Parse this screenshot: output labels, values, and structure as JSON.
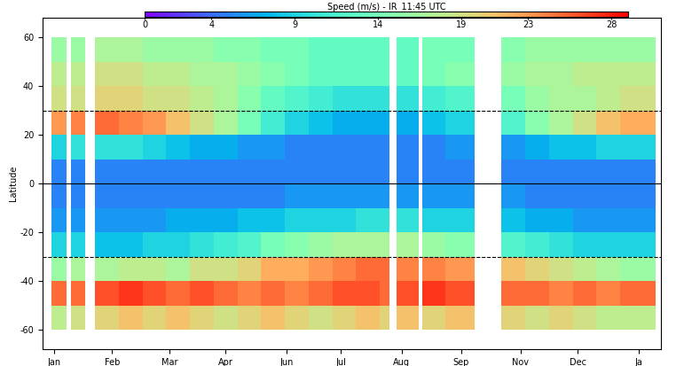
{
  "chart_data": {
    "type": "heatmap",
    "title": "Speed (m/s) - IR_11:45 UTC",
    "y_label": "Latitude",
    "x_edges": [
      5,
      14,
      17,
      25,
      31,
      45,
      59,
      73,
      87,
      101,
      115,
      129,
      143,
      157,
      171,
      185,
      199,
      205,
      209,
      222,
      224,
      238,
      255,
      271,
      285,
      299,
      313,
      327,
      341,
      362
    ],
    "y_edges": [
      -60,
      -50,
      -40,
      -30,
      -20,
      -10,
      0,
      10,
      20,
      30,
      40,
      50,
      60
    ],
    "cells": [
      [
        18,
        null,
        19,
        null,
        20,
        21,
        20,
        21,
        20,
        19,
        20,
        21,
        20,
        19,
        20,
        21,
        20,
        null,
        21,
        null,
        20,
        21,
        null,
        20,
        19,
        20,
        19,
        18,
        18
      ],
      [
        25,
        null,
        25,
        null,
        26,
        27,
        26,
        25,
        26,
        25,
        24,
        25,
        24,
        25,
        26,
        26,
        25,
        null,
        26,
        null,
        27,
        26,
        null,
        25,
        25,
        24,
        25,
        24,
        25
      ],
      [
        16,
        null,
        17,
        null,
        17,
        18,
        18,
        17,
        19,
        19,
        20,
        22,
        22,
        23,
        24,
        25,
        25,
        null,
        24,
        null,
        24,
        23,
        null,
        21,
        20,
        19,
        18,
        17,
        16
      ],
      [
        9,
        null,
        9,
        null,
        8,
        8,
        9,
        9,
        10,
        11,
        12,
        14,
        15,
        16,
        17,
        17,
        17,
        null,
        17,
        null,
        16,
        15,
        null,
        12,
        11,
        10,
        9,
        9,
        9
      ],
      [
        6,
        null,
        6,
        null,
        6,
        6,
        6,
        7,
        7,
        7,
        8,
        8,
        9,
        9,
        9,
        10,
        10,
        null,
        10,
        null,
        9,
        9,
        null,
        8,
        7,
        7,
        6,
        6,
        6
      ],
      [
        5,
        null,
        5,
        null,
        5,
        5,
        5,
        5,
        5,
        5,
        5,
        5,
        6,
        6,
        6,
        6,
        6,
        null,
        6,
        null,
        6,
        6,
        null,
        6,
        5,
        5,
        5,
        5,
        5
      ],
      [
        5,
        null,
        5,
        null,
        5,
        5,
        5,
        5,
        5,
        5,
        5,
        5,
        5,
        5,
        5,
        5,
        5,
        null,
        5,
        null,
        5,
        5,
        null,
        5,
        5,
        5,
        5,
        5,
        5
      ],
      [
        9,
        null,
        10,
        null,
        10,
        10,
        9,
        8,
        7,
        7,
        6,
        6,
        5,
        5,
        5,
        5,
        5,
        null,
        5,
        null,
        5,
        6,
        null,
        6,
        7,
        8,
        8,
        9,
        9
      ],
      [
        23,
        null,
        24,
        null,
        25,
        24,
        23,
        21,
        19,
        17,
        14,
        11,
        9,
        8,
        7,
        7,
        7,
        null,
        7,
        null,
        8,
        9,
        null,
        12,
        15,
        17,
        19,
        21,
        22
      ],
      [
        19,
        null,
        19,
        null,
        20,
        20,
        19,
        19,
        18,
        17,
        15,
        13,
        12,
        11,
        10,
        10,
        10,
        null,
        10,
        null,
        11,
        12,
        null,
        14,
        16,
        17,
        17,
        18,
        19
      ],
      [
        18,
        null,
        18,
        null,
        19,
        19,
        18,
        18,
        17,
        17,
        16,
        15,
        14,
        13,
        13,
        13,
        13,
        null,
        13,
        null,
        14,
        15,
        null,
        16,
        17,
        17,
        18,
        18,
        18
      ],
      [
        16,
        null,
        16,
        null,
        17,
        17,
        16,
        16,
        16,
        15,
        15,
        14,
        14,
        13,
        13,
        13,
        13,
        null,
        13,
        null,
        14,
        14,
        null,
        15,
        16,
        16,
        16,
        16,
        16
      ]
    ],
    "xlim": [
      0,
      365
    ],
    "xticks": [
      {
        "value": 7,
        "label": "Jan"
      },
      {
        "value": 41,
        "label": "Feb"
      },
      {
        "value": 75,
        "label": "Mar"
      },
      {
        "value": 108,
        "label": "Apr"
      },
      {
        "value": 144,
        "label": "Jun"
      },
      {
        "value": 176,
        "label": "Jul"
      },
      {
        "value": 212,
        "label": "Aug"
      },
      {
        "value": 247,
        "label": "Sep"
      },
      {
        "value": 282,
        "label": "Nov"
      },
      {
        "value": 316,
        "label": "Dec"
      },
      {
        "value": 352,
        "label": "Ja"
      }
    ],
    "ylim": [
      -68,
      68
    ],
    "yticks": [
      -60,
      -40,
      -20,
      0,
      20,
      40,
      60
    ],
    "colorbar": {
      "range": [
        0,
        29
      ],
      "ticks": [
        0,
        4,
        9,
        14,
        19,
        23,
        28
      ]
    },
    "reference_lines": [
      {
        "value": -30,
        "line_style": "dashed"
      },
      {
        "value": 0,
        "line_style": "solid"
      },
      {
        "value": 30,
        "line_style": "dashed"
      }
    ]
  }
}
